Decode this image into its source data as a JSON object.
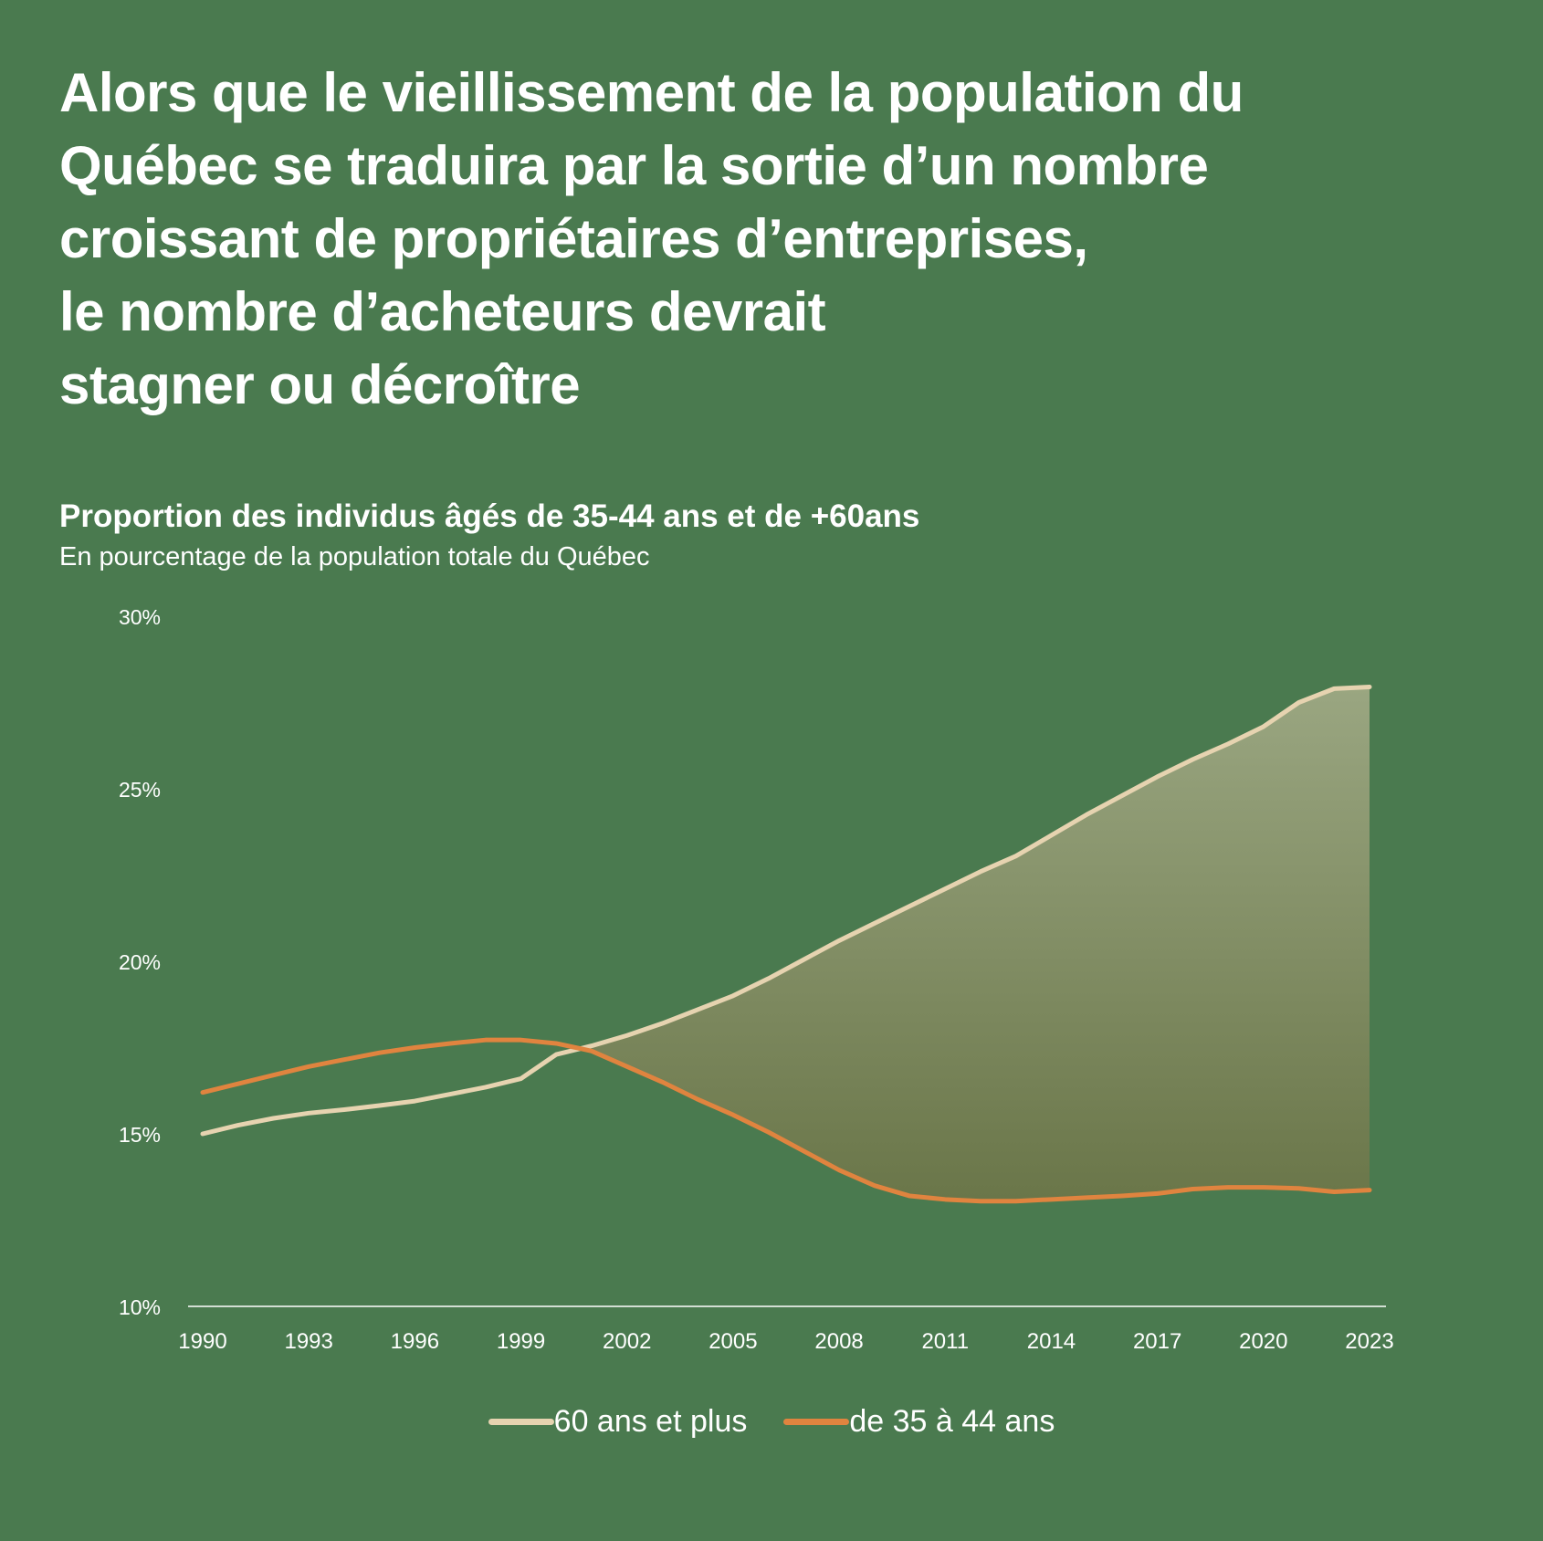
{
  "headline": {
    "lines": [
      "Alors que le vieillissement de la population du",
      "Québec se traduira par la sortie d’un nombre",
      "croissant de propriétaires d’entreprises,",
      "le nombre d’acheteurs devrait",
      "stagner ou décroître"
    ]
  },
  "colors": {
    "background": "#4a7a4f",
    "series_60_plus": "#e6d3b0",
    "series_35_44": "#e0843f",
    "fill_top": "#9aa681",
    "fill_bottom": "#6a7649"
  },
  "chart_data": {
    "type": "line",
    "title": "Proportion des individus âgés de 35-44 ans et de +60ans",
    "subtitle": "En pourcentage de la population totale du Québec",
    "xlabel": "",
    "ylabel": "",
    "ylim": [
      10,
      30
    ],
    "yticks": [
      10,
      15,
      20,
      25,
      30
    ],
    "ytick_labels": [
      "10%",
      "15%",
      "20%",
      "25%",
      "30%"
    ],
    "xlim": [
      1990,
      2023
    ],
    "xticks": [
      1990,
      1993,
      1996,
      1999,
      2002,
      2005,
      2008,
      2011,
      2014,
      2017,
      2020,
      2023
    ],
    "xtick_labels": [
      "1990",
      "1993",
      "1996",
      "1999",
      "2002",
      "2005",
      "2008",
      "2011",
      "2014",
      "2017",
      "2020",
      "2023"
    ],
    "grid": false,
    "legend_position": "bottom-center",
    "shaded_gap": "between series after crossover",
    "x": [
      1990,
      1991,
      1992,
      1993,
      1994,
      1995,
      1996,
      1997,
      1998,
      1999,
      2000,
      2001,
      2002,
      2003,
      2004,
      2005,
      2006,
      2007,
      2008,
      2009,
      2010,
      2011,
      2012,
      2013,
      2014,
      2015,
      2016,
      2017,
      2018,
      2019,
      2020,
      2021,
      2022,
      2023
    ],
    "series": [
      {
        "name": "60 ans et plus",
        "color": "#e6d3b0",
        "values": [
          15.0,
          15.25,
          15.45,
          15.6,
          15.7,
          15.82,
          15.95,
          16.15,
          16.35,
          16.6,
          17.3,
          17.55,
          17.85,
          18.2,
          18.6,
          19.0,
          19.5,
          20.05,
          20.6,
          21.1,
          21.6,
          22.1,
          22.6,
          23.05,
          23.65,
          24.25,
          24.8,
          25.35,
          25.85,
          26.3,
          26.8,
          27.5,
          27.9,
          27.95
        ]
      },
      {
        "name": "de 35 à 44 ans",
        "color": "#e0843f",
        "values": [
          16.2,
          16.45,
          16.7,
          16.95,
          17.15,
          17.35,
          17.5,
          17.62,
          17.72,
          17.72,
          17.62,
          17.4,
          16.95,
          16.5,
          16.0,
          15.55,
          15.05,
          14.5,
          13.95,
          13.5,
          13.2,
          13.1,
          13.05,
          13.05,
          13.1,
          13.15,
          13.2,
          13.27,
          13.4,
          13.45,
          13.45,
          13.42,
          13.32,
          13.37
        ]
      }
    ]
  }
}
